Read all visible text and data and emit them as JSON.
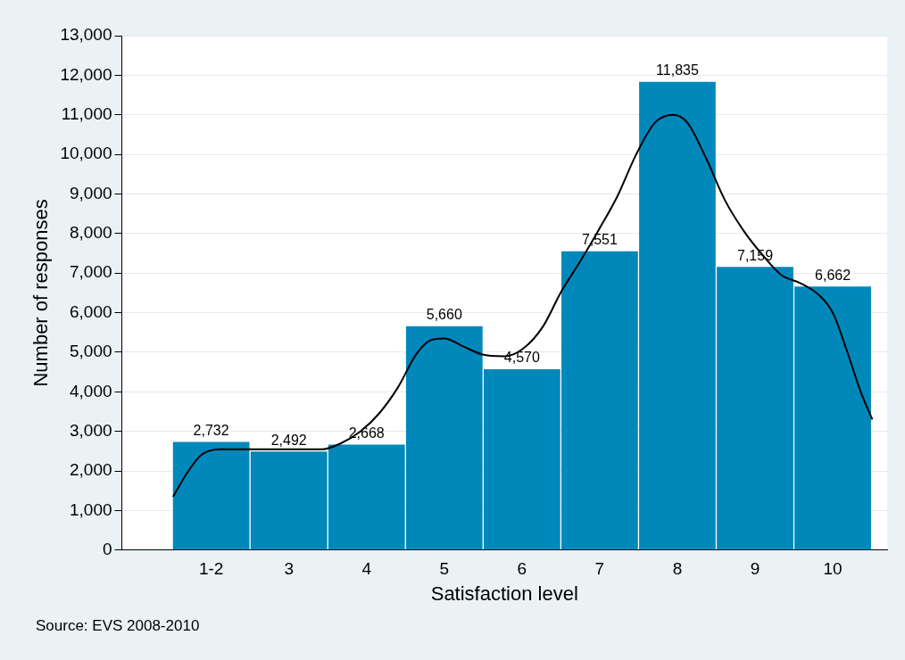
{
  "chart_data": {
    "type": "bar",
    "xlabel": "Satisfaction level",
    "ylabel": "Number of responses",
    "x": [
      2,
      3,
      4,
      5,
      6,
      7,
      8,
      9,
      10
    ],
    "xlim": [
      0.85,
      10.7
    ],
    "xticks": [
      {
        "value": 2,
        "label": "1-2"
      },
      3,
      4,
      5,
      6,
      7,
      8,
      9,
      10
    ],
    "ylim": [
      0,
      13000
    ],
    "yticks": [
      {
        "value": 0,
        "label": "0"
      },
      {
        "value": 1000,
        "label": "1,000"
      },
      {
        "value": 2000,
        "label": "2,000"
      },
      {
        "value": 3000,
        "label": "3,000"
      },
      {
        "value": 4000,
        "label": "4,000"
      },
      {
        "value": 5000,
        "label": "5,000"
      },
      {
        "value": 6000,
        "label": "6,000"
      },
      {
        "value": 7000,
        "label": "7,000"
      },
      {
        "value": 8000,
        "label": "8,000"
      },
      {
        "value": 9000,
        "label": "9,000"
      },
      {
        "value": 10000,
        "label": "10,000"
      },
      {
        "value": 11000,
        "label": "11,000"
      },
      {
        "value": 12000,
        "label": "12,000"
      },
      {
        "value": 13000,
        "label": "13,000"
      }
    ],
    "series": [
      {
        "color": "#0088bb",
        "values": [
          2732,
          2492,
          2668,
          5660,
          4570,
          7551,
          11835,
          7159,
          6662
        ],
        "value_labels": [
          "2,732",
          "2,492",
          "2,668",
          "5,660",
          "4,570",
          "7,551",
          "11,835",
          "7,159",
          "6,662"
        ]
      },
      {
        "type": "line",
        "color": "#000000",
        "marker": "none",
        "x": [
          1.51,
          1.69,
          1.87,
          2.11,
          2.47,
          2.95,
          3.43,
          3.67,
          3.92,
          4.16,
          4.4,
          4.64,
          4.82,
          5,
          5.24,
          5.48,
          5.78,
          6.02,
          6.27,
          6.51,
          6.75,
          6.99,
          7.23,
          7.47,
          7.71,
          7.95,
          8.13,
          8.37,
          8.61,
          8.86,
          9.1,
          9.34,
          9.58,
          9.82,
          10,
          10.18,
          10.36,
          10.51
        ],
        "values": [
          1350,
          1950,
          2400,
          2550,
          2550,
          2550,
          2550,
          2700,
          3000,
          3450,
          4100,
          4950,
          5300,
          5350,
          5150,
          4950,
          4900,
          5100,
          5650,
          6550,
          7300,
          8100,
          8950,
          10000,
          10800,
          11000,
          10800,
          9900,
          8850,
          8050,
          7450,
          6950,
          6750,
          6450,
          6000,
          5050,
          4000,
          3300
        ]
      }
    ],
    "grid": "y",
    "legend": false,
    "annotations": [
      "Source: EVS 2008-2010"
    ]
  }
}
